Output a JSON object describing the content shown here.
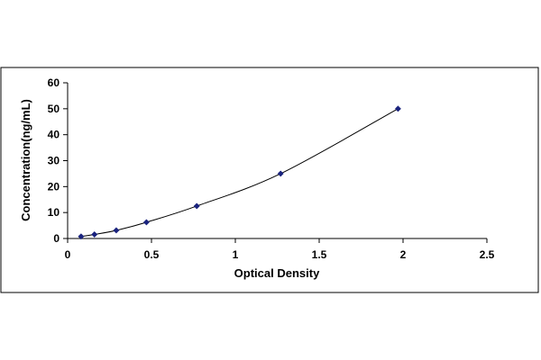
{
  "chart_data": {
    "type": "scatter",
    "title": "",
    "xlabel": "Optical Density",
    "ylabel": "Concentration(ng/mL)",
    "xlim": [
      0,
      2.5
    ],
    "ylim": [
      0,
      60
    ],
    "xticks": [
      "0",
      "0.5",
      "1",
      "1.5",
      "2",
      "2.5"
    ],
    "yticks": [
      "0",
      "10",
      "20",
      "30",
      "40",
      "50",
      "60"
    ],
    "grid": false,
    "legend": "none",
    "marker": "diamond",
    "fit_line": "smooth curve through points",
    "colors": {
      "marker": "#1a237e",
      "line": "#000000",
      "axes": "#000000",
      "frame": "#000000"
    },
    "series": [
      {
        "points": [
          {
            "x": 0.08,
            "y": 0.78
          },
          {
            "x": 0.16,
            "y": 1.56
          },
          {
            "x": 0.29,
            "y": 3.13
          },
          {
            "x": 0.47,
            "y": 6.25
          },
          {
            "x": 0.77,
            "y": 12.5
          },
          {
            "x": 1.27,
            "y": 25
          },
          {
            "x": 1.97,
            "y": 50
          }
        ]
      }
    ]
  }
}
